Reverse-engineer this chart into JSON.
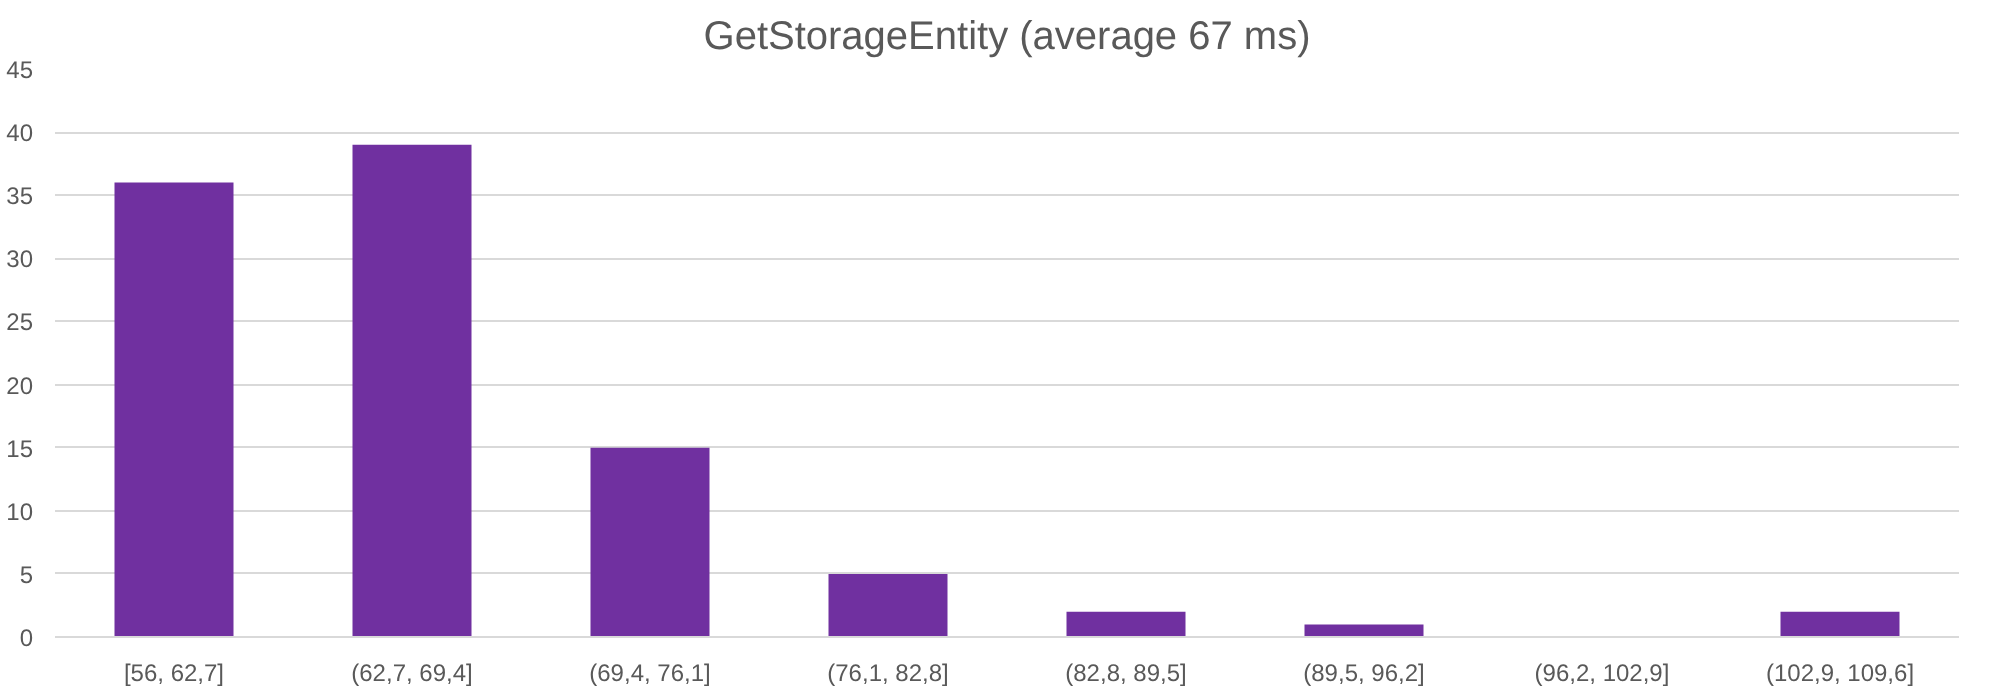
{
  "chart_data": {
    "type": "bar",
    "title": "GetStorageEntity (average 67 ms)",
    "categories": [
      "[56, 62,7]",
      "(62,7, 69,4]",
      "(69,4, 76,1]",
      "(76,1, 82,8]",
      "(82,8, 89,5]",
      "(89,5, 96,2]",
      "(96,2, 102,9]",
      "(102,9, 109,6]"
    ],
    "values": [
      36,
      39,
      15,
      5,
      2,
      1,
      0,
      2
    ],
    "color": "#7030a0",
    "ylim": [
      0,
      45
    ],
    "yticks": [
      0,
      5,
      10,
      15,
      20,
      25,
      30,
      35,
      40,
      45
    ],
    "grid": "y"
  }
}
